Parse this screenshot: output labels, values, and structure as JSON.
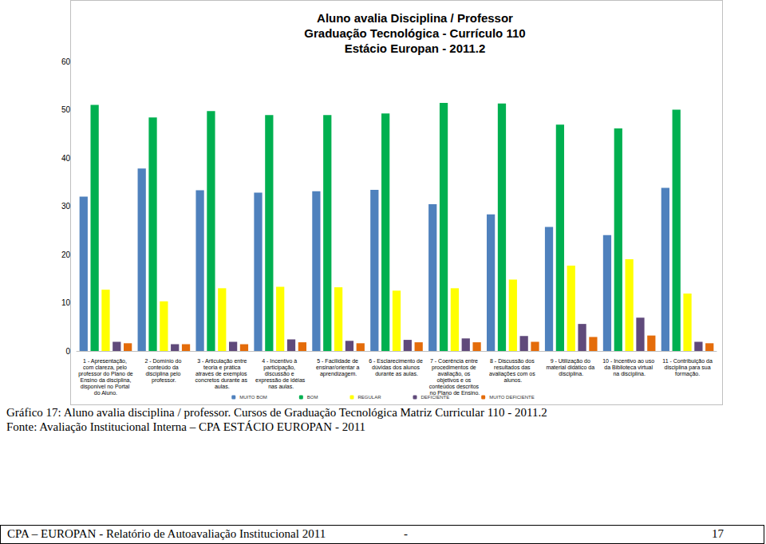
{
  "chart_data": {
    "type": "bar",
    "title": [
      "Aluno avalia Disciplina / Professor",
      "Graduação Tecnológica - Currículo 110",
      "Estácio Europan - 2011.2"
    ],
    "categories": [
      "1 - Apresentação, com clareza, pelo professor do Plano de Ensino da disciplina, disponível no Portal do Aluno.",
      "2 - Domínio do conteúdo da disciplina pelo professor.",
      "3 - Articulação entre teoria e prática através de exemplos concretos durante as aulas.",
      "4 - Incentivo à participação, discussão e expressão de idéias nas aulas.",
      "5 - Facilidade de ensinar/orientar a aprendizagem.",
      "6 - Esclarecimento de dúvidas dos alunos durante as aulas.",
      "7 - Coerência entre procedimentos de avaliação, os objetivos e os conteúdos descritos no Plano de Ensino.",
      "8 - Discussão dos resultados das avaliações com os alunos.",
      "9 - Utilização do material didático da disciplina.",
      "10 - Incentivo ao uso da Biblioteca virtual na disciplina.",
      "11 - Contribuição da disciplina para sua formação."
    ],
    "series": [
      {
        "name": "MUITO BOM",
        "color": "#4f81bd",
        "values": [
          32.0,
          37.8,
          33.3,
          32.8,
          33.1,
          33.4,
          30.4,
          28.3,
          25.7,
          24.0,
          33.8
        ]
      },
      {
        "name": "BOM",
        "color": "#00b050",
        "values": [
          51.0,
          48.4,
          49.7,
          48.9,
          48.9,
          49.2,
          51.4,
          51.3,
          46.9,
          46.1,
          50.0
        ]
      },
      {
        "name": "REGULAR",
        "color": "#ffff00",
        "values": [
          12.7,
          10.3,
          13.0,
          13.3,
          13.2,
          12.5,
          13.0,
          14.8,
          17.7,
          19.0,
          11.9
        ]
      },
      {
        "name": "DEFICIENTE",
        "color": "#604a7b",
        "values": [
          1.9,
          1.4,
          1.9,
          2.4,
          2.1,
          2.3,
          2.6,
          3.1,
          5.6,
          6.9,
          1.9
        ]
      },
      {
        "name": "MUITO DEFICIENTE",
        "color": "#e46c0a",
        "values": [
          1.6,
          1.4,
          1.4,
          1.8,
          1.6,
          1.8,
          1.8,
          1.9,
          2.9,
          3.2,
          1.6
        ]
      }
    ],
    "ylim": [
      0,
      60
    ],
    "yticks": [
      0,
      10,
      20,
      30,
      40,
      50,
      60
    ],
    "grid": false,
    "legend": "bottom"
  },
  "caption": [
    "Gráfico 17: Aluno avalia disciplina / professor. Cursos de Graduação Tecnológica Matriz Curricular 110 - 2011.2",
    "Fonte: Avaliação Institucional Interna – CPA ESTÁCIO EUROPAN - 2011"
  ],
  "footer": {
    "text": "CPA – EUROPAN - Relatório de Autoavaliação Institucional  2011",
    "separator": "-",
    "page": "17"
  }
}
